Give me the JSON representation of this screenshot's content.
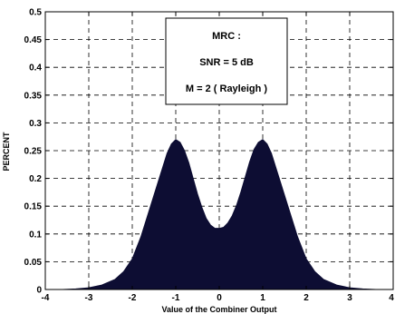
{
  "chart_data": {
    "type": "area",
    "title": "",
    "xlabel": "Value  of  the  Combiner  Output",
    "ylabel": "PERCENT",
    "xlim": [
      -4,
      4
    ],
    "ylim": [
      0,
      0.5
    ],
    "xticks": [
      -4,
      -3,
      -2,
      -1,
      0,
      1,
      2,
      3,
      4
    ],
    "xtick_labels": [
      "-4",
      "-3",
      "-2",
      "-1",
      "0",
      "1",
      "2",
      "3",
      "4"
    ],
    "yticks": [
      0,
      0.05,
      0.1,
      0.15,
      0.2,
      0.25,
      0.3,
      0.35,
      0.4,
      0.45,
      0.5
    ],
    "ytick_labels": [
      "0",
      "0.05",
      "0.1",
      "0.15",
      "0.2",
      "0.25",
      "0.3",
      "0.35",
      "0.4",
      "0.45",
      "0.5"
    ],
    "grid": true,
    "fill_color": "#0d0d33",
    "legend_box_lines": [
      "MRC :",
      "SNR = 5 dB",
      "M = 2 ( Rayleigh )"
    ],
    "legend_position": "top-center",
    "series": [
      {
        "x": [
          -3.6,
          -3.3,
          -3.0,
          -2.7,
          -2.4,
          -2.2,
          -2.0,
          -1.8,
          -1.6,
          -1.4,
          -1.3,
          -1.2,
          -1.1,
          -1.0,
          -0.9,
          -0.8,
          -0.7,
          -0.6,
          -0.5,
          -0.4,
          -0.3,
          -0.2,
          -0.1,
          0.0,
          0.1,
          0.2,
          0.3,
          0.4,
          0.5,
          0.6,
          0.7,
          0.8,
          0.9,
          1.0,
          1.1,
          1.2,
          1.3,
          1.4,
          1.6,
          1.8,
          2.0,
          2.2,
          2.4,
          2.7,
          3.0,
          3.3,
          3.6
        ],
        "y": [
          0.0,
          0.001,
          0.003,
          0.008,
          0.018,
          0.032,
          0.055,
          0.095,
          0.145,
          0.195,
          0.22,
          0.245,
          0.262,
          0.27,
          0.265,
          0.25,
          0.228,
          0.2,
          0.172,
          0.148,
          0.128,
          0.116,
          0.11,
          0.11,
          0.112,
          0.12,
          0.133,
          0.152,
          0.176,
          0.203,
          0.23,
          0.252,
          0.265,
          0.27,
          0.262,
          0.245,
          0.22,
          0.195,
          0.145,
          0.095,
          0.055,
          0.032,
          0.018,
          0.008,
          0.003,
          0.001,
          0.0
        ]
      }
    ]
  }
}
